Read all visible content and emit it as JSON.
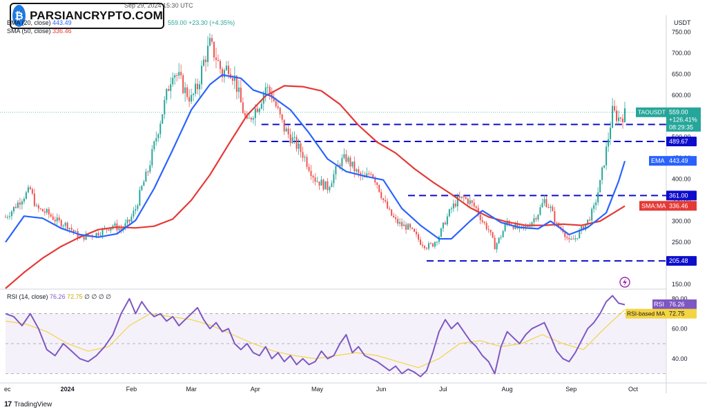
{
  "publisher": "ra... published on TradingView.com, Sep 29, 2024 15:30 UTC",
  "logo": {
    "text": "PARSIANCRYPTO.COM",
    "icon": "bitcoin-b-icon"
  },
  "header": {
    "ohlc_tail": "559.00  +23.30 (+4.35%)",
    "ema_label": "EMA (20, close)",
    "ema_value": "443.49",
    "sma_label": "SMA (50, close)",
    "sma_value": "336.46",
    "rsi_label": "RSI (14, close)",
    "rsi_value": "76.26",
    "rsi_ma_value": "72.75",
    "rsi_extra": "∅ ∅ ∅ ∅"
  },
  "footer": {
    "brand": "TradingView",
    "icon": "tradingview-icon"
  },
  "colors": {
    "up": "#26a69a",
    "down": "#ef5350",
    "ema": "#2962ff",
    "sma": "#e53935",
    "rsi": "#7e57c2",
    "rsi_ma": "#f4d442",
    "level": "#0d0dcc",
    "alert": "#9c27b0"
  },
  "chart_data": [
    {
      "type": "candlestick",
      "symbol": "TAOUSDT",
      "currency": "USDT",
      "x_ticks": [
        "ec",
        "2024",
        "Feb",
        "Mar",
        "Apr",
        "May",
        "Jun",
        "Jul",
        "Aug",
        "Sep",
        "Oct"
      ],
      "y_ticks": [
        150,
        200,
        250,
        300,
        350,
        400,
        450,
        500,
        550,
        600,
        650,
        700,
        750
      ],
      "ylim": [
        140,
        790
      ],
      "x_range_days": [
        0,
        300
      ],
      "price_points": [
        [
          0,
          310
        ],
        [
          3,
          325
        ],
        [
          8,
          355
        ],
        [
          12,
          375
        ],
        [
          15,
          330
        ],
        [
          20,
          320
        ],
        [
          25,
          300
        ],
        [
          30,
          290
        ],
        [
          33,
          275
        ],
        [
          36,
          260
        ],
        [
          40,
          265
        ],
        [
          44,
          270
        ],
        [
          48,
          280
        ],
        [
          52,
          290
        ],
        [
          56,
          280
        ],
        [
          60,
          300
        ],
        [
          63,
          330
        ],
        [
          66,
          380
        ],
        [
          69,
          420
        ],
        [
          72,
          480
        ],
        [
          75,
          540
        ],
        [
          78,
          600
        ],
        [
          81,
          660
        ],
        [
          84,
          640
        ],
        [
          87,
          610
        ],
        [
          90,
          590
        ],
        [
          93,
          620
        ],
        [
          96,
          680
        ],
        [
          99,
          720
        ],
        [
          102,
          690
        ],
        [
          105,
          650
        ],
        [
          108,
          670
        ],
        [
          111,
          640
        ],
        [
          114,
          580
        ],
        [
          117,
          530
        ],
        [
          120,
          560
        ],
        [
          123,
          580
        ],
        [
          126,
          620
        ],
        [
          129,
          600
        ],
        [
          132,
          560
        ],
        [
          135,
          520
        ],
        [
          138,
          500
        ],
        [
          141,
          480
        ],
        [
          144,
          460
        ],
        [
          147,
          430
        ],
        [
          150,
          400
        ],
        [
          153,
          390
        ],
        [
          156,
          380
        ],
        [
          159,
          410
        ],
        [
          162,
          440
        ],
        [
          165,
          450
        ],
        [
          168,
          430
        ],
        [
          171,
          410
        ],
        [
          174,
          400
        ],
        [
          177,
          420
        ],
        [
          180,
          390
        ],
        [
          183,
          350
        ],
        [
          186,
          320
        ],
        [
          189,
          300
        ],
        [
          192,
          290
        ],
        [
          195,
          285
        ],
        [
          198,
          270
        ],
        [
          201,
          250
        ],
        [
          204,
          240
        ],
        [
          207,
          245
        ],
        [
          210,
          265
        ],
        [
          213,
          300
        ],
        [
          216,
          330
        ],
        [
          219,
          350
        ],
        [
          222,
          355
        ],
        [
          225,
          345
        ],
        [
          228,
          330
        ],
        [
          231,
          300
        ],
        [
          234,
          280
        ],
        [
          237,
          240
        ],
        [
          240,
          265
        ],
        [
          243,
          300
        ],
        [
          246,
          290
        ],
        [
          249,
          280
        ],
        [
          252,
          285
        ],
        [
          255,
          300
        ],
        [
          258,
          320
        ],
        [
          261,
          350
        ],
        [
          264,
          330
        ],
        [
          267,
          290
        ],
        [
          270,
          280
        ],
        [
          273,
          250
        ],
        [
          276,
          260
        ],
        [
          279,
          280
        ],
        [
          282,
          300
        ],
        [
          285,
          330
        ],
        [
          288,
          390
        ],
        [
          291,
          470
        ],
        [
          294,
          560
        ],
        [
          297,
          545
        ],
        [
          300,
          555
        ]
      ],
      "ema_points": [
        [
          0,
          250
        ],
        [
          9,
          312
        ],
        [
          18,
          307
        ],
        [
          27,
          283
        ],
        [
          36,
          268
        ],
        [
          45,
          262
        ],
        [
          54,
          270
        ],
        [
          63,
          302
        ],
        [
          72,
          378
        ],
        [
          81,
          470
        ],
        [
          90,
          565
        ],
        [
          99,
          625
        ],
        [
          105,
          648
        ],
        [
          114,
          640
        ],
        [
          120,
          612
        ],
        [
          129,
          597
        ],
        [
          138,
          565
        ],
        [
          147,
          510
        ],
        [
          156,
          448
        ],
        [
          165,
          418
        ],
        [
          174,
          407
        ],
        [
          183,
          398
        ],
        [
          192,
          330
        ],
        [
          201,
          290
        ],
        [
          210,
          258
        ],
        [
          216,
          258
        ],
        [
          225,
          300
        ],
        [
          231,
          325
        ],
        [
          240,
          297
        ],
        [
          249,
          285
        ],
        [
          258,
          282
        ],
        [
          264,
          300
        ],
        [
          273,
          268
        ],
        [
          282,
          285
        ],
        [
          291,
          320
        ],
        [
          297,
          395
        ],
        [
          300,
          443
        ]
      ],
      "sma_points": [
        [
          0,
          140
        ],
        [
          9,
          178
        ],
        [
          18,
          212
        ],
        [
          27,
          240
        ],
        [
          36,
          262
        ],
        [
          45,
          280
        ],
        [
          54,
          286
        ],
        [
          63,
          284
        ],
        [
          72,
          288
        ],
        [
          81,
          305
        ],
        [
          90,
          350
        ],
        [
          99,
          410
        ],
        [
          108,
          482
        ],
        [
          117,
          552
        ],
        [
          126,
          598
        ],
        [
          135,
          622
        ],
        [
          144,
          620
        ],
        [
          153,
          610
        ],
        [
          162,
          578
        ],
        [
          171,
          528
        ],
        [
          180,
          488
        ],
        [
          189,
          462
        ],
        [
          198,
          425
        ],
        [
          207,
          393
        ],
        [
          216,
          364
        ],
        [
          225,
          332
        ],
        [
          234,
          310
        ],
        [
          243,
          298
        ],
        [
          252,
          290
        ],
        [
          261,
          290
        ],
        [
          270,
          293
        ],
        [
          279,
          290
        ],
        [
          288,
          300
        ],
        [
          294,
          318
        ],
        [
          300,
          336
        ]
      ],
      "levels": [
        {
          "value": 530.0,
          "label": "530.00"
        },
        {
          "value": 489.67,
          "label": "489.67"
        },
        {
          "value": 361.0,
          "label": "361.00"
        },
        {
          "value": 205.48,
          "label": "205.48"
        }
      ],
      "price_labels": {
        "symbol": "TAOUSDT",
        "last": "559.00",
        "change": "+126.41%",
        "countdown": "08:29:35",
        "ema": "443.49",
        "ema_tag": "EMA",
        "sma": "336.46",
        "sma_tag": "SMA:MA"
      }
    },
    {
      "type": "line",
      "name": "RSI (14, close)",
      "y_ticks": [
        40.0,
        60.0,
        80.0
      ],
      "ylim": [
        27,
        85
      ],
      "bands": [
        30,
        50,
        70
      ],
      "rsi_points": [
        [
          0,
          70
        ],
        [
          4,
          68
        ],
        [
          8,
          62
        ],
        [
          12,
          70
        ],
        [
          16,
          60
        ],
        [
          20,
          46
        ],
        [
          24,
          42
        ],
        [
          28,
          50
        ],
        [
          32,
          45
        ],
        [
          36,
          40
        ],
        [
          40,
          38
        ],
        [
          44,
          42
        ],
        [
          48,
          48
        ],
        [
          52,
          56
        ],
        [
          56,
          70
        ],
        [
          60,
          80
        ],
        [
          63,
          70
        ],
        [
          66,
          78
        ],
        [
          69,
          72
        ],
        [
          72,
          68
        ],
        [
          75,
          70
        ],
        [
          78,
          65
        ],
        [
          81,
          68
        ],
        [
          84,
          62
        ],
        [
          87,
          66
        ],
        [
          90,
          70
        ],
        [
          93,
          74
        ],
        [
          96,
          66
        ],
        [
          99,
          60
        ],
        [
          102,
          64
        ],
        [
          105,
          58
        ],
        [
          108,
          60
        ],
        [
          111,
          50
        ],
        [
          114,
          46
        ],
        [
          117,
          50
        ],
        [
          120,
          44
        ],
        [
          123,
          42
        ],
        [
          126,
          48
        ],
        [
          129,
          40
        ],
        [
          132,
          44
        ],
        [
          135,
          38
        ],
        [
          138,
          42
        ],
        [
          141,
          36
        ],
        [
          144,
          40
        ],
        [
          147,
          36
        ],
        [
          150,
          38
        ],
        [
          153,
          45
        ],
        [
          156,
          40
        ],
        [
          159,
          42
        ],
        [
          162,
          50
        ],
        [
          165,
          56
        ],
        [
          168,
          44
        ],
        [
          171,
          48
        ],
        [
          174,
          42
        ],
        [
          177,
          40
        ],
        [
          180,
          38
        ],
        [
          183,
          35
        ],
        [
          186,
          32
        ],
        [
          189,
          35
        ],
        [
          192,
          30
        ],
        [
          195,
          33
        ],
        [
          198,
          31
        ],
        [
          201,
          28
        ],
        [
          204,
          32
        ],
        [
          207,
          44
        ],
        [
          210,
          58
        ],
        [
          213,
          66
        ],
        [
          216,
          60
        ],
        [
          219,
          64
        ],
        [
          222,
          58
        ],
        [
          225,
          52
        ],
        [
          228,
          48
        ],
        [
          231,
          42
        ],
        [
          234,
          38
        ],
        [
          237,
          30
        ],
        [
          240,
          48
        ],
        [
          243,
          58
        ],
        [
          246,
          54
        ],
        [
          249,
          50
        ],
        [
          252,
          56
        ],
        [
          255,
          60
        ],
        [
          258,
          62
        ],
        [
          261,
          64
        ],
        [
          264,
          55
        ],
        [
          267,
          45
        ],
        [
          270,
          40
        ],
        [
          273,
          38
        ],
        [
          276,
          44
        ],
        [
          279,
          52
        ],
        [
          282,
          60
        ],
        [
          285,
          64
        ],
        [
          288,
          70
        ],
        [
          291,
          78
        ],
        [
          294,
          82
        ],
        [
          297,
          77
        ],
        [
          300,
          76
        ]
      ],
      "rsi_ma_points": [
        [
          0,
          65
        ],
        [
          10,
          63
        ],
        [
          20,
          58
        ],
        [
          30,
          50
        ],
        [
          40,
          45
        ],
        [
          50,
          48
        ],
        [
          60,
          62
        ],
        [
          70,
          70
        ],
        [
          80,
          68
        ],
        [
          90,
          66
        ],
        [
          100,
          62
        ],
        [
          110,
          56
        ],
        [
          120,
          50
        ],
        [
          130,
          45
        ],
        [
          140,
          42
        ],
        [
          150,
          40
        ],
        [
          160,
          42
        ],
        [
          170,
          44
        ],
        [
          180,
          42
        ],
        [
          190,
          38
        ],
        [
          200,
          34
        ],
        [
          210,
          40
        ],
        [
          220,
          50
        ],
        [
          230,
          52
        ],
        [
          240,
          48
        ],
        [
          250,
          50
        ],
        [
          260,
          56
        ],
        [
          270,
          50
        ],
        [
          280,
          46
        ],
        [
          290,
          60
        ],
        [
          300,
          72.75
        ]
      ],
      "price_labels": {
        "rsi_tag": "RSI",
        "rsi": "76.26",
        "ma_tag": "RSI-based MA",
        "ma": "72.75"
      }
    }
  ]
}
